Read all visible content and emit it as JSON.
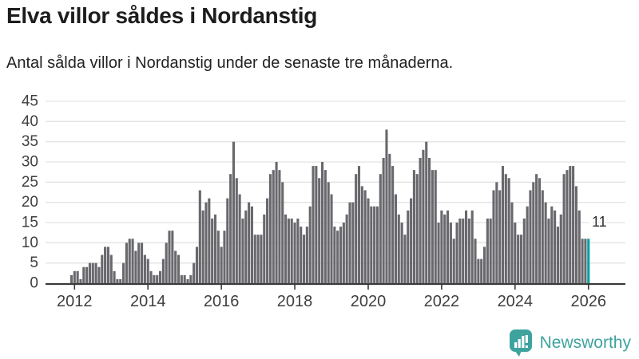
{
  "title": "Elva villor såldes i Nordanstig",
  "subtitle": "Antal sålda villor i Nordanstig under de senaste tre månaderna.",
  "branding": {
    "logo_text": "Newsworthy",
    "logo_icon": "speech-bubble-bar-chart-icon"
  },
  "colors": {
    "bar_gray": "#68686d",
    "accent_teal": "#00a0a0",
    "logo_teal": "#3ea39e",
    "grid": "#e3e3e3",
    "axis": "#3a3a3a",
    "tick_text": "#3f3f3f",
    "title_text": "#1d1d1d",
    "value_label_text": "#2e2e2e"
  },
  "chart_data": {
    "type": "bar",
    "title": "Elva villor såldes i Nordanstig",
    "subtitle": "Antal sålda villor i Nordanstig under de senaste tre månaderna.",
    "frequency": "monthly",
    "start_month": "2011-12",
    "end_month": "2026-01",
    "xlabel": "",
    "ylabel": "",
    "ylim": [
      0,
      45
    ],
    "grid": true,
    "y_ticks": [
      0,
      5,
      10,
      15,
      20,
      25,
      30,
      35,
      40,
      45
    ],
    "x_tick_labels": [
      "2012",
      "2014",
      "2016",
      "2018",
      "2020",
      "2022",
      "2024",
      "2026"
    ],
    "values": [
      2,
      3,
      3,
      1,
      4,
      4,
      5,
      5,
      5,
      4,
      7,
      9,
      9,
      7,
      3,
      1,
      1,
      5,
      10,
      11,
      11,
      8,
      10,
      10,
      7,
      6,
      3,
      2,
      2,
      3,
      6,
      10,
      13,
      13,
      8,
      7,
      2,
      2,
      1,
      2,
      5,
      9,
      23,
      18,
      20,
      21,
      16,
      17,
      13,
      9,
      13,
      21,
      27,
      35,
      26,
      22,
      16,
      18,
      20,
      19,
      12,
      12,
      12,
      17,
      21,
      27,
      28,
      30,
      28,
      25,
      17,
      16,
      16,
      15,
      16,
      14,
      12,
      14,
      19,
      29,
      29,
      26,
      30,
      28,
      25,
      22,
      14,
      13,
      14,
      15,
      17,
      20,
      20,
      27,
      29,
      24,
      23,
      21,
      19,
      19,
      19,
      27,
      31,
      38,
      32,
      29,
      22,
      17,
      15,
      12,
      18,
      21,
      28,
      27,
      31,
      33,
      35,
      31,
      28,
      28,
      15,
      18,
      17,
      18,
      15,
      11,
      15,
      16,
      16,
      18,
      16,
      18,
      11,
      6,
      6,
      9,
      16,
      16,
      23,
      25,
      23,
      29,
      27,
      26,
      20,
      15,
      12,
      12,
      16,
      19,
      23,
      25,
      27,
      26,
      23,
      20,
      16,
      19,
      18,
      14,
      17,
      27,
      28,
      29,
      29,
      24,
      18,
      11,
      11,
      11
    ],
    "highlight": {
      "index": 169,
      "value": 11,
      "label": "11"
    }
  }
}
